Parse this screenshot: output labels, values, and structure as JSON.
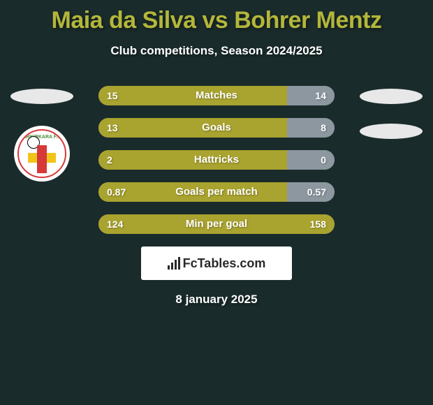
{
  "colors": {
    "background": "#1a2b2b",
    "title": "#b3b63a",
    "subtitle": "#ffffff",
    "bar_track": "#8c97a0",
    "bar_left": "#a9a32f",
    "bar_right": "#8c97a0",
    "text_white": "#ffffff",
    "ellipse": "#e8e8e8",
    "badge_bg": "#ffffff",
    "badge_red": "#d73838",
    "badge_yellow": "#f0c419",
    "badge_green": "#4a8c3a",
    "badge_ball": "#ffffff",
    "badge_ball_border": "#000000",
    "fctables_bg": "#ffffff",
    "fctables_text": "#2a2a2a",
    "fctables_bar": "#2a2a2a"
  },
  "title": "Maia da Silva vs Bohrer Mentz",
  "subtitle": "Club competitions, Season 2024/2025",
  "badge_text": "BIRKIRKARA F.C.",
  "stats": [
    {
      "label": "Matches",
      "left_val": "15",
      "right_val": "14",
      "left_pct": 80,
      "right_pct": 20
    },
    {
      "label": "Goals",
      "left_val": "13",
      "right_val": "8",
      "left_pct": 80,
      "right_pct": 20
    },
    {
      "label": "Hattricks",
      "left_val": "2",
      "right_val": "0",
      "left_pct": 80,
      "right_pct": 20
    },
    {
      "label": "Goals per match",
      "left_val": "0.87",
      "right_val": "0.57",
      "left_pct": 80,
      "right_pct": 20
    },
    {
      "label": "Min per goal",
      "left_val": "124",
      "right_val": "158",
      "left_pct": 100,
      "right_pct": 0
    }
  ],
  "fctables_label": "FcTables.com",
  "fctables_icon_heights": [
    6,
    10,
    14,
    18
  ],
  "date": "8 january 2025"
}
